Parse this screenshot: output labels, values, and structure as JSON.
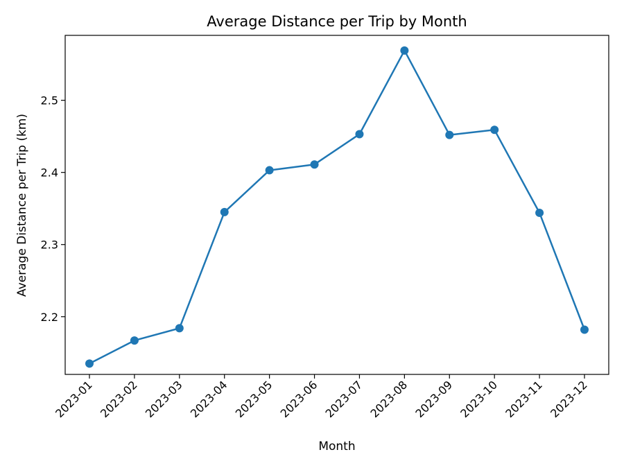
{
  "chart_data": {
    "type": "line",
    "title": "Average Distance per Trip by Month",
    "xlabel": "Month",
    "ylabel": "Average Distance per Trip (km)",
    "categories": [
      "2023-01",
      "2023-02",
      "2023-03",
      "2023-04",
      "2023-05",
      "2023-06",
      "2023-07",
      "2023-08",
      "2023-09",
      "2023-10",
      "2023-11",
      "2023-12"
    ],
    "series": [
      {
        "values": [
          2.135,
          2.167,
          2.184,
          2.345,
          2.403,
          2.411,
          2.453,
          2.569,
          2.452,
          2.459,
          2.344,
          2.182
        ],
        "color": "#1f77b4"
      }
    ],
    "yticks": [
      2.2,
      2.3,
      2.4,
      2.5
    ],
    "ylim": [
      2.12,
      2.59
    ],
    "grid": false,
    "marker": "circle"
  }
}
